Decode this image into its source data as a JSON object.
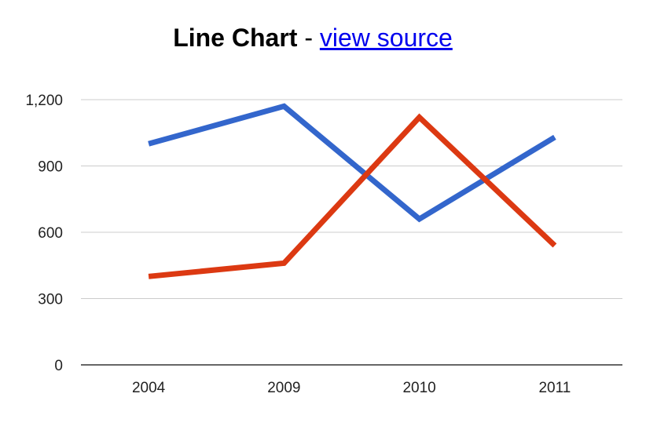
{
  "header": {
    "title": "Line Chart",
    "separator": "-",
    "link_text": "view source"
  },
  "chart_data": {
    "type": "line",
    "title": "Line Chart",
    "categories": [
      "2004",
      "2009",
      "2010",
      "2011"
    ],
    "series": [
      {
        "color": "#3366cc",
        "values": [
          1000,
          1170,
          660,
          1030
        ]
      },
      {
        "color": "#dc3912",
        "values": [
          400,
          460,
          1120,
          540
        ]
      }
    ],
    "yticks": [
      0,
      300,
      600,
      900,
      1200
    ],
    "ytick_labels": [
      "0",
      "300",
      "600",
      "900",
      "1,200"
    ],
    "ylim": [
      0,
      1200
    ],
    "xlabel": "",
    "ylabel": "",
    "grid": true,
    "legend": "none"
  }
}
